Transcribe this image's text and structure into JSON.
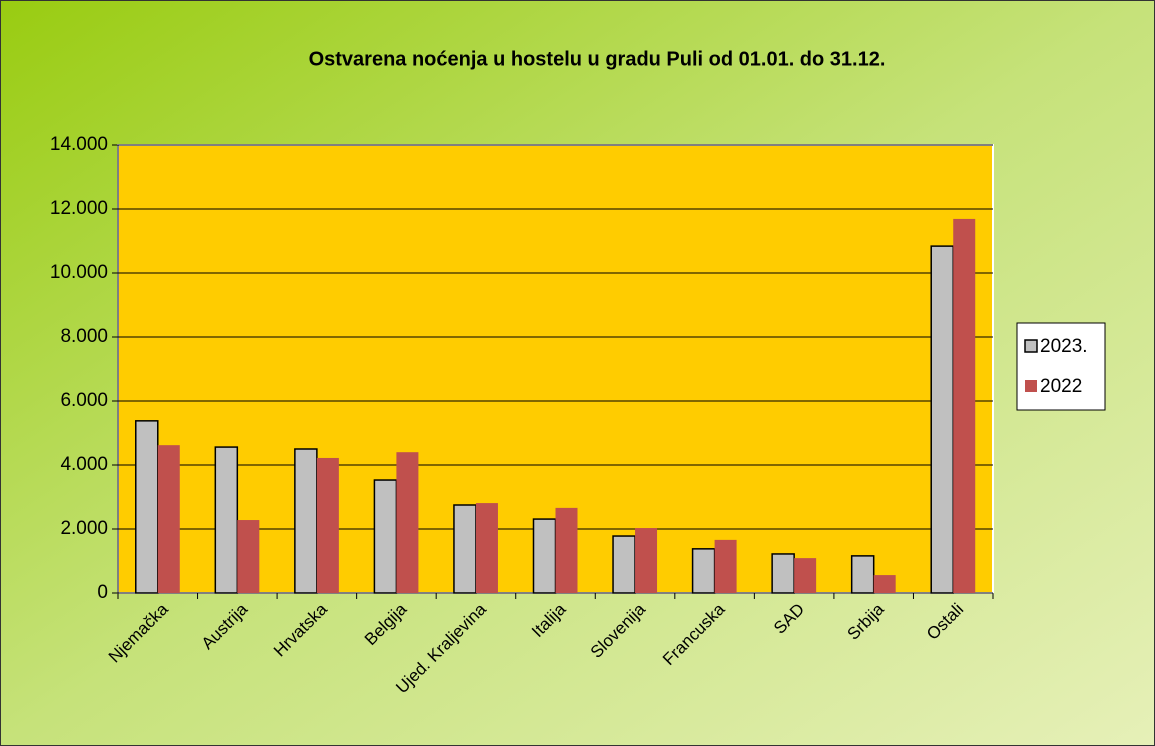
{
  "chart_data": {
    "type": "bar",
    "title": "Ostvarena noćenja u hostelu u gradu Puli od 01.01. do 31.12.",
    "categories": [
      "Njemačka",
      "Austrija",
      "Hrvatska",
      "Belgija",
      "Ujed. Kraljevina",
      "Italija",
      "Slovenija",
      "Francuska",
      "SAD",
      "Srbija",
      "Ostali"
    ],
    "series": [
      {
        "name": "2023.",
        "color": "#c0c0c0",
        "edgecolor": "#000000",
        "values": [
          5380,
          4560,
          4500,
          3530,
          2750,
          2310,
          1780,
          1380,
          1220,
          1160,
          10840
        ]
      },
      {
        "name": "2022",
        "color": "#c0504d",
        "values": [
          4620,
          2280,
          4220,
          4400,
          2810,
          2660,
          2030,
          1660,
          1090,
          560,
          11690
        ]
      }
    ],
    "ylim": [
      0,
      14000
    ],
    "yticks": [
      0,
      {
        "value": 2000,
        "label": "2.000"
      },
      {
        "value": 4000,
        "label": "4.000"
      },
      {
        "value": 6000,
        "label": "6.000"
      },
      {
        "value": 8000,
        "label": "8.000"
      },
      {
        "value": 10000,
        "label": "10.000"
      },
      {
        "value": 12000,
        "label": "12.000"
      },
      {
        "value": 14000,
        "label": "14.000"
      }
    ],
    "grid": true,
    "legend": "right",
    "plot_background": "#ffcc00"
  }
}
